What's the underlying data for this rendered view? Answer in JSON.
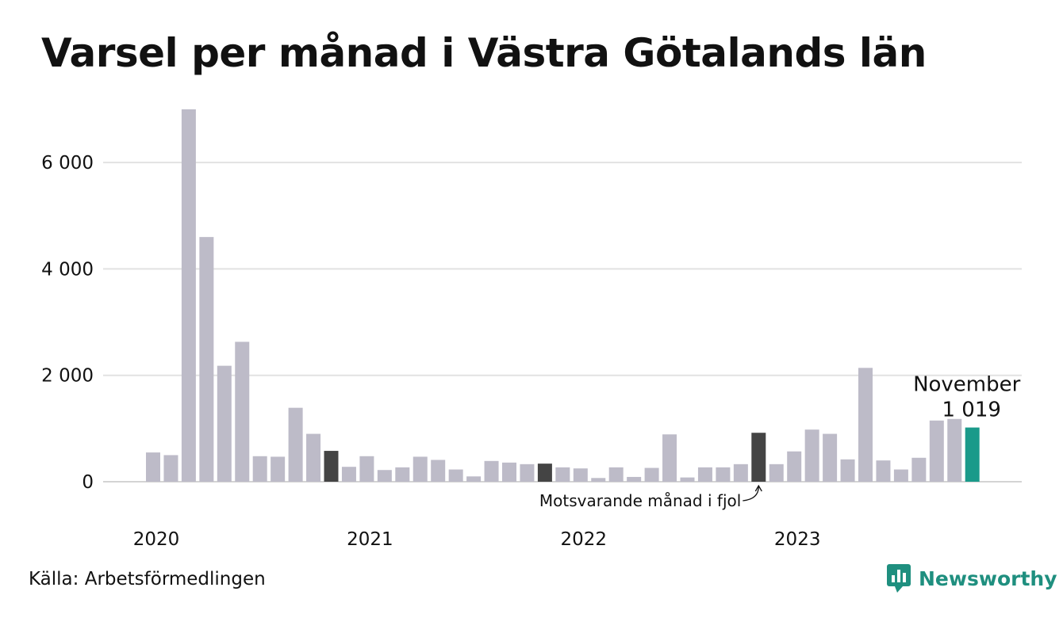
{
  "title": "Varsel per månad i Västra Götalands län",
  "source": "Källa: Arbetsförmedlingen",
  "brand": {
    "name": "Newsworthy",
    "icon": "bar-chart-bubble-icon",
    "color": "#1f8f7f"
  },
  "chart_data": {
    "type": "bar",
    "title": "Varsel per månad i Västra Götalands län",
    "xlabel": "",
    "ylabel": "",
    "ylim": [
      0,
      7000
    ],
    "grid": true,
    "y_ticks": [
      0,
      2000,
      4000,
      6000
    ],
    "y_tick_labels": [
      "0",
      "2 000",
      "4 000",
      "6 000"
    ],
    "x_tick_labels": [
      {
        "label": "2020",
        "index": 0
      },
      {
        "label": "2021",
        "index": 12
      },
      {
        "label": "2022",
        "index": 24
      },
      {
        "label": "2023",
        "index": 36
      }
    ],
    "categories": [
      "2020-01",
      "2020-02",
      "2020-03",
      "2020-04",
      "2020-05",
      "2020-06",
      "2020-07",
      "2020-08",
      "2020-09",
      "2020-10",
      "2020-11",
      "2020-12",
      "2021-01",
      "2021-02",
      "2021-03",
      "2021-04",
      "2021-05",
      "2021-06",
      "2021-07",
      "2021-08",
      "2021-09",
      "2021-10",
      "2021-11",
      "2021-12",
      "2022-01",
      "2022-02",
      "2022-03",
      "2022-04",
      "2022-05",
      "2022-06",
      "2022-07",
      "2022-08",
      "2022-09",
      "2022-10",
      "2022-11",
      "2022-12",
      "2023-01",
      "2023-02",
      "2023-03",
      "2023-04",
      "2023-05",
      "2023-06",
      "2023-07",
      "2023-08",
      "2023-09",
      "2023-10",
      "2023-11"
    ],
    "values": [
      550,
      500,
      7000,
      4600,
      2180,
      2630,
      480,
      470,
      1390,
      900,
      580,
      280,
      480,
      220,
      270,
      470,
      410,
      230,
      100,
      390,
      360,
      330,
      340,
      270,
      250,
      70,
      270,
      90,
      260,
      890,
      80,
      270,
      270,
      330,
      920,
      330,
      570,
      980,
      900,
      420,
      2140,
      400,
      230,
      450,
      1150,
      1180,
      1019
    ],
    "highlight": [
      {
        "index": 10,
        "color": "#444444"
      },
      {
        "index": 22,
        "color": "#444444"
      },
      {
        "index": 34,
        "color": "#444444"
      },
      {
        "index": 46,
        "color": "#1a9a8a"
      }
    ],
    "bar_color": "#bdbbc8",
    "last_label": {
      "month": "November",
      "value": "1 019"
    },
    "annotation": {
      "text": "Motsvarande månad i fjol",
      "index": 34
    }
  }
}
